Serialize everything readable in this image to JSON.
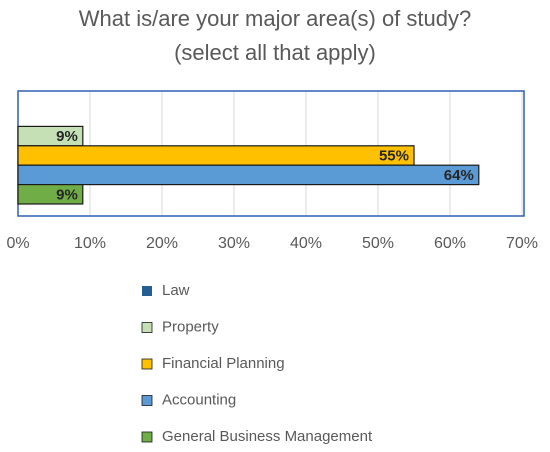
{
  "chart_data": {
    "type": "bar",
    "orientation": "horizontal",
    "title": [
      "What is/are your major area(s) of study?",
      "(select all that apply)"
    ],
    "series": [
      {
        "name": "Law",
        "color": "#255e91",
        "values": [
          null
        ],
        "value_labels": [
          null
        ]
      },
      {
        "name": "Property",
        "color": "#c5e0b4",
        "values": [
          9
        ],
        "value_labels": [
          "9%"
        ]
      },
      {
        "name": "Financial Planning",
        "color": "#ffc000",
        "values": [
          55
        ],
        "value_labels": [
          "55%"
        ]
      },
      {
        "name": "Accounting",
        "color": "#5b9bd5",
        "values": [
          64
        ],
        "value_labels": [
          "64%"
        ]
      },
      {
        "name": "General Business Management",
        "color": "#70ad47",
        "values": [
          9
        ],
        "value_labels": [
          "9%"
        ]
      }
    ],
    "xlim": [
      0,
      70
    ],
    "xticks": [
      {
        "value": 0,
        "label": "0%"
      },
      {
        "value": 10,
        "label": "10%"
      },
      {
        "value": 20,
        "label": "20%"
      },
      {
        "value": 30,
        "label": "30%"
      },
      {
        "value": 40,
        "label": "40%"
      },
      {
        "value": 50,
        "label": "50%"
      },
      {
        "value": 60,
        "label": "60%"
      },
      {
        "value": 70,
        "label": "70%"
      }
    ],
    "grid": true,
    "legend": "bottom"
  }
}
